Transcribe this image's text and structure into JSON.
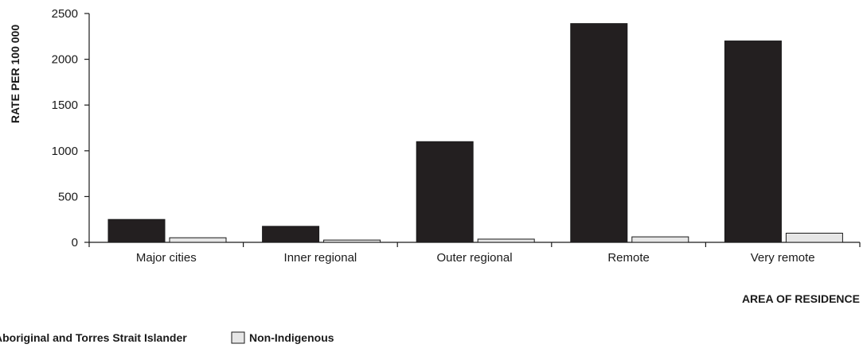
{
  "chart_data": {
    "type": "bar",
    "ylabel": "RATE PER 100 000",
    "xlabel": "AREA OF RESIDENCE",
    "categories": [
      "Major cities",
      "Inner regional",
      "Outer regional",
      "Remote",
      "Very remote"
    ],
    "ylim": [
      0,
      2500
    ],
    "yticks": [
      0,
      500,
      1000,
      1500,
      2000,
      2500
    ],
    "grid": false,
    "legend_position": "bottom-left",
    "series": [
      {
        "name": "Aboriginal and Torres Strait Islander",
        "color": "#231f20",
        "values": [
          250,
          175,
          1100,
          2390,
          2200
        ]
      },
      {
        "name": "Non-Indigenous",
        "color": "#e6e6e6",
        "values": [
          50,
          25,
          35,
          60,
          100
        ]
      }
    ]
  }
}
